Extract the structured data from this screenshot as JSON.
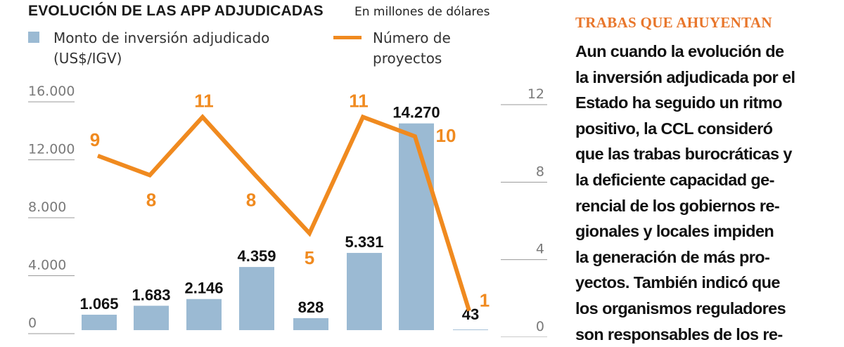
{
  "chart_data": {
    "type": "bar",
    "title": "EVOLUCIÓN DE LAS APP ADJUDICADAS",
    "subtitle": "En millones de dólares",
    "legend": {
      "placement": "top-left"
    },
    "series": [
      {
        "name": "Monto de inversión adjudicado (US$/IGV)",
        "type": "bar",
        "axis": "left",
        "color": "#9bbad3",
        "values": [
          1065,
          1683,
          2146,
          4359,
          828,
          5331,
          14270,
          43
        ],
        "labels": [
          "1.065",
          "1.683",
          "2.146",
          "4.359",
          "828",
          "5.331",
          "14.270",
          "43"
        ]
      },
      {
        "name": "Número de proyectos",
        "type": "line",
        "axis": "right",
        "color": "#f08a1f",
        "values": [
          9,
          8,
          11,
          8,
          5,
          11,
          10,
          1
        ],
        "labels": [
          "9",
          "8",
          "11",
          "8",
          "5",
          "11",
          "10",
          "1"
        ]
      }
    ],
    "y_left": {
      "ylim": [
        0,
        16000
      ],
      "ticks": [
        0,
        4000,
        8000,
        12000,
        16000
      ],
      "tick_labels": [
        "0",
        "4.000",
        "8.000",
        "12.000",
        "16.000"
      ]
    },
    "y_right": {
      "ylim": [
        0,
        12
      ],
      "ticks": [
        0,
        4,
        8,
        12
      ],
      "tick_labels": [
        "0",
        "4",
        "8",
        "12"
      ]
    },
    "grid": false
  },
  "sidebar": {
    "heading": "TRABAS QUE AHUYENTAN",
    "lines": [
      "Aun cuando la evolución de",
      "la inversión adjudicada por el",
      "Estado ha seguido un ritmo",
      "positivo, la CCL consideró",
      "que las trabas burocráticas y",
      "la deficiente capacidad ge-",
      "rencial de los gobiernos re-",
      "gionales y locales impiden",
      "la generación de más pro-",
      "yectos. También indicó que",
      "los organismos reguladores",
      "son responsables de los re-"
    ]
  },
  "colors": {
    "bar": "#9bbad3",
    "line": "#f08a1f",
    "tick_text": "#7a7a7a",
    "bar_label": "#111111",
    "heading_accent": "#e8762b"
  }
}
